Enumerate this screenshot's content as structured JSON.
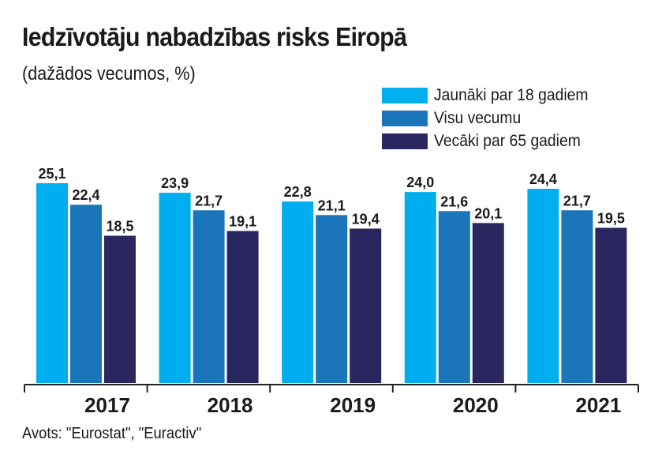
{
  "chart_data": {
    "type": "bar",
    "title": "Iedzīvotāju nabadzības risks Eiropā",
    "subtitle": "(dažādos vecumos, %)",
    "categories": [
      "2017",
      "2018",
      "2019",
      "2020",
      "2021"
    ],
    "series": [
      {
        "name": "Jaunāki par 18 gadiem",
        "color": "#00aeef",
        "values": [
          25.1,
          23.9,
          22.8,
          24.0,
          24.4
        ],
        "labels": [
          "25,1",
          "23,9",
          "22,8",
          "24,0",
          "24,4"
        ]
      },
      {
        "name": "Visu vecumu",
        "color": "#1b75bb",
        "values": [
          22.4,
          21.7,
          21.1,
          21.6,
          21.7
        ],
        "labels": [
          "22,4",
          "21,7",
          "21,1",
          "21,6",
          "21,7"
        ]
      },
      {
        "name": "Vecāki par 65 gadiem",
        "color": "#2a2760",
        "values": [
          18.5,
          19.1,
          19.4,
          20.1,
          19.5
        ],
        "labels": [
          "18,5",
          "19,1",
          "19,4",
          "20,1",
          "19,5"
        ]
      }
    ],
    "xlabel": "",
    "ylabel": "",
    "ylim": [
      0,
      25.1
    ],
    "grid": false,
    "legend": "top-right",
    "source": "Avots: \"Eurostat\", \"Euractiv\""
  }
}
